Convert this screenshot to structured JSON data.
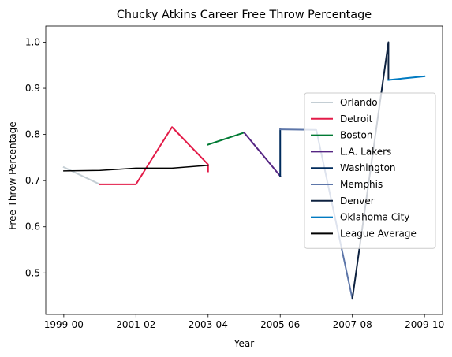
{
  "chart_data": {
    "type": "line",
    "title": "Chucky Atkins Career Free Throw Percentage",
    "xlabel": "Year",
    "ylabel": "Free Throw Percentage",
    "x_ticks": [
      "1999-00",
      "2001-02",
      "2003-04",
      "2005-06",
      "2007-08",
      "2009-10"
    ],
    "x_tick_positions": [
      0,
      2,
      4,
      6,
      8,
      10
    ],
    "xlim": [
      -0.5,
      10.5
    ],
    "ylim": [
      0.41,
      1.035
    ],
    "y_ticks": [
      0.5,
      0.6,
      0.7,
      0.8,
      0.9,
      1.0
    ],
    "y_tick_labels": [
      "0.5",
      "0.6",
      "0.7",
      "0.8",
      "0.9",
      "1.0"
    ],
    "grid": false,
    "legend_position": "center-right",
    "series": [
      {
        "name": "Orlando",
        "color": "#c4ced4",
        "points": [
          [
            0,
            0.729
          ],
          [
            1,
            0.692
          ]
        ]
      },
      {
        "name": "Detroit",
        "color": "#e31b48",
        "points": [
          [
            1,
            0.692
          ],
          [
            2,
            0.692
          ],
          [
            3,
            0.816
          ],
          [
            4,
            0.735
          ],
          [
            4,
            0.72
          ]
        ]
      },
      {
        "name": "Boston",
        "color": "#007a33",
        "points": [
          [
            4,
            0.778
          ],
          [
            5,
            0.804
          ]
        ]
      },
      {
        "name": "L.A. Lakers",
        "color": "#552583",
        "points": [
          [
            5,
            0.804
          ],
          [
            6,
            0.71
          ]
        ]
      },
      {
        "name": "Washington",
        "color": "#002b5c",
        "points": [
          [
            6,
            0.71
          ],
          [
            6,
            0.811
          ]
        ]
      },
      {
        "name": "Memphis",
        "color": "#5d76a9",
        "points": [
          [
            6,
            0.811
          ],
          [
            7,
            0.81
          ],
          [
            8,
            0.444
          ]
        ]
      },
      {
        "name": "Denver",
        "color": "#0e2240",
        "points": [
          [
            8,
            0.444
          ],
          [
            9,
            1.0
          ],
          [
            9,
            0.918
          ]
        ]
      },
      {
        "name": "Oklahoma City",
        "color": "#007ac1",
        "points": [
          [
            9,
            0.918
          ],
          [
            10,
            0.926
          ]
        ]
      },
      {
        "name": "League Average",
        "color": "#000000",
        "points": [
          [
            0,
            0.721
          ],
          [
            1,
            0.722
          ],
          [
            2,
            0.727
          ],
          [
            3,
            0.727
          ],
          [
            4,
            0.733
          ]
        ]
      }
    ]
  }
}
